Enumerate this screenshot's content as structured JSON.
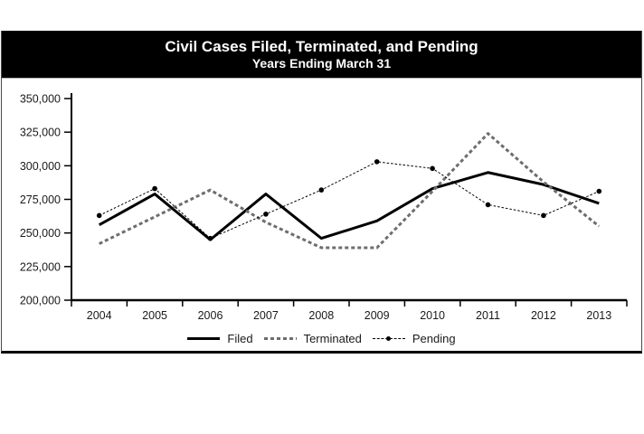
{
  "chart_data": {
    "type": "line",
    "title": "Civil Cases Filed, Terminated, and Pending",
    "subtitle": "Years Ending March 31",
    "categories": [
      "2004",
      "2005",
      "2006",
      "2007",
      "2008",
      "2009",
      "2010",
      "2011",
      "2012",
      "2013"
    ],
    "series": [
      {
        "name": "Filed",
        "color": "#000000",
        "line_style": "solid",
        "line_width": 3,
        "marker": false,
        "values": [
          256000,
          279000,
          245000,
          279000,
          246000,
          259000,
          283000,
          295000,
          286000,
          272000
        ]
      },
      {
        "name": "Terminated",
        "color": "#6e6e6e",
        "line_style": "dashed",
        "line_width": 3,
        "marker": false,
        "values": [
          242000,
          262000,
          282000,
          258000,
          239000,
          239000,
          281000,
          324000,
          288000,
          255000
        ]
      },
      {
        "name": "Pending",
        "color": "#000000",
        "line_style": "dotted",
        "line_width": 1,
        "marker": true,
        "values": [
          263000,
          283000,
          246000,
          264000,
          282000,
          303000,
          298000,
          271000,
          263000,
          281000
        ]
      }
    ],
    "ylim": [
      200000,
      350000
    ],
    "ytick_step": 25000,
    "ytick_labels": [
      "200,000",
      "225,000",
      "250,000",
      "275,000",
      "300,000",
      "325,000",
      "350,000"
    ],
    "xlabel": "",
    "ylabel": "",
    "grid": false,
    "legend_position": "bottom"
  },
  "colors": {
    "header_bg": "#000000",
    "header_text": "#ffffff",
    "axis_text": "#1a1a1a",
    "terminated_gray": "#6e6e6e"
  }
}
